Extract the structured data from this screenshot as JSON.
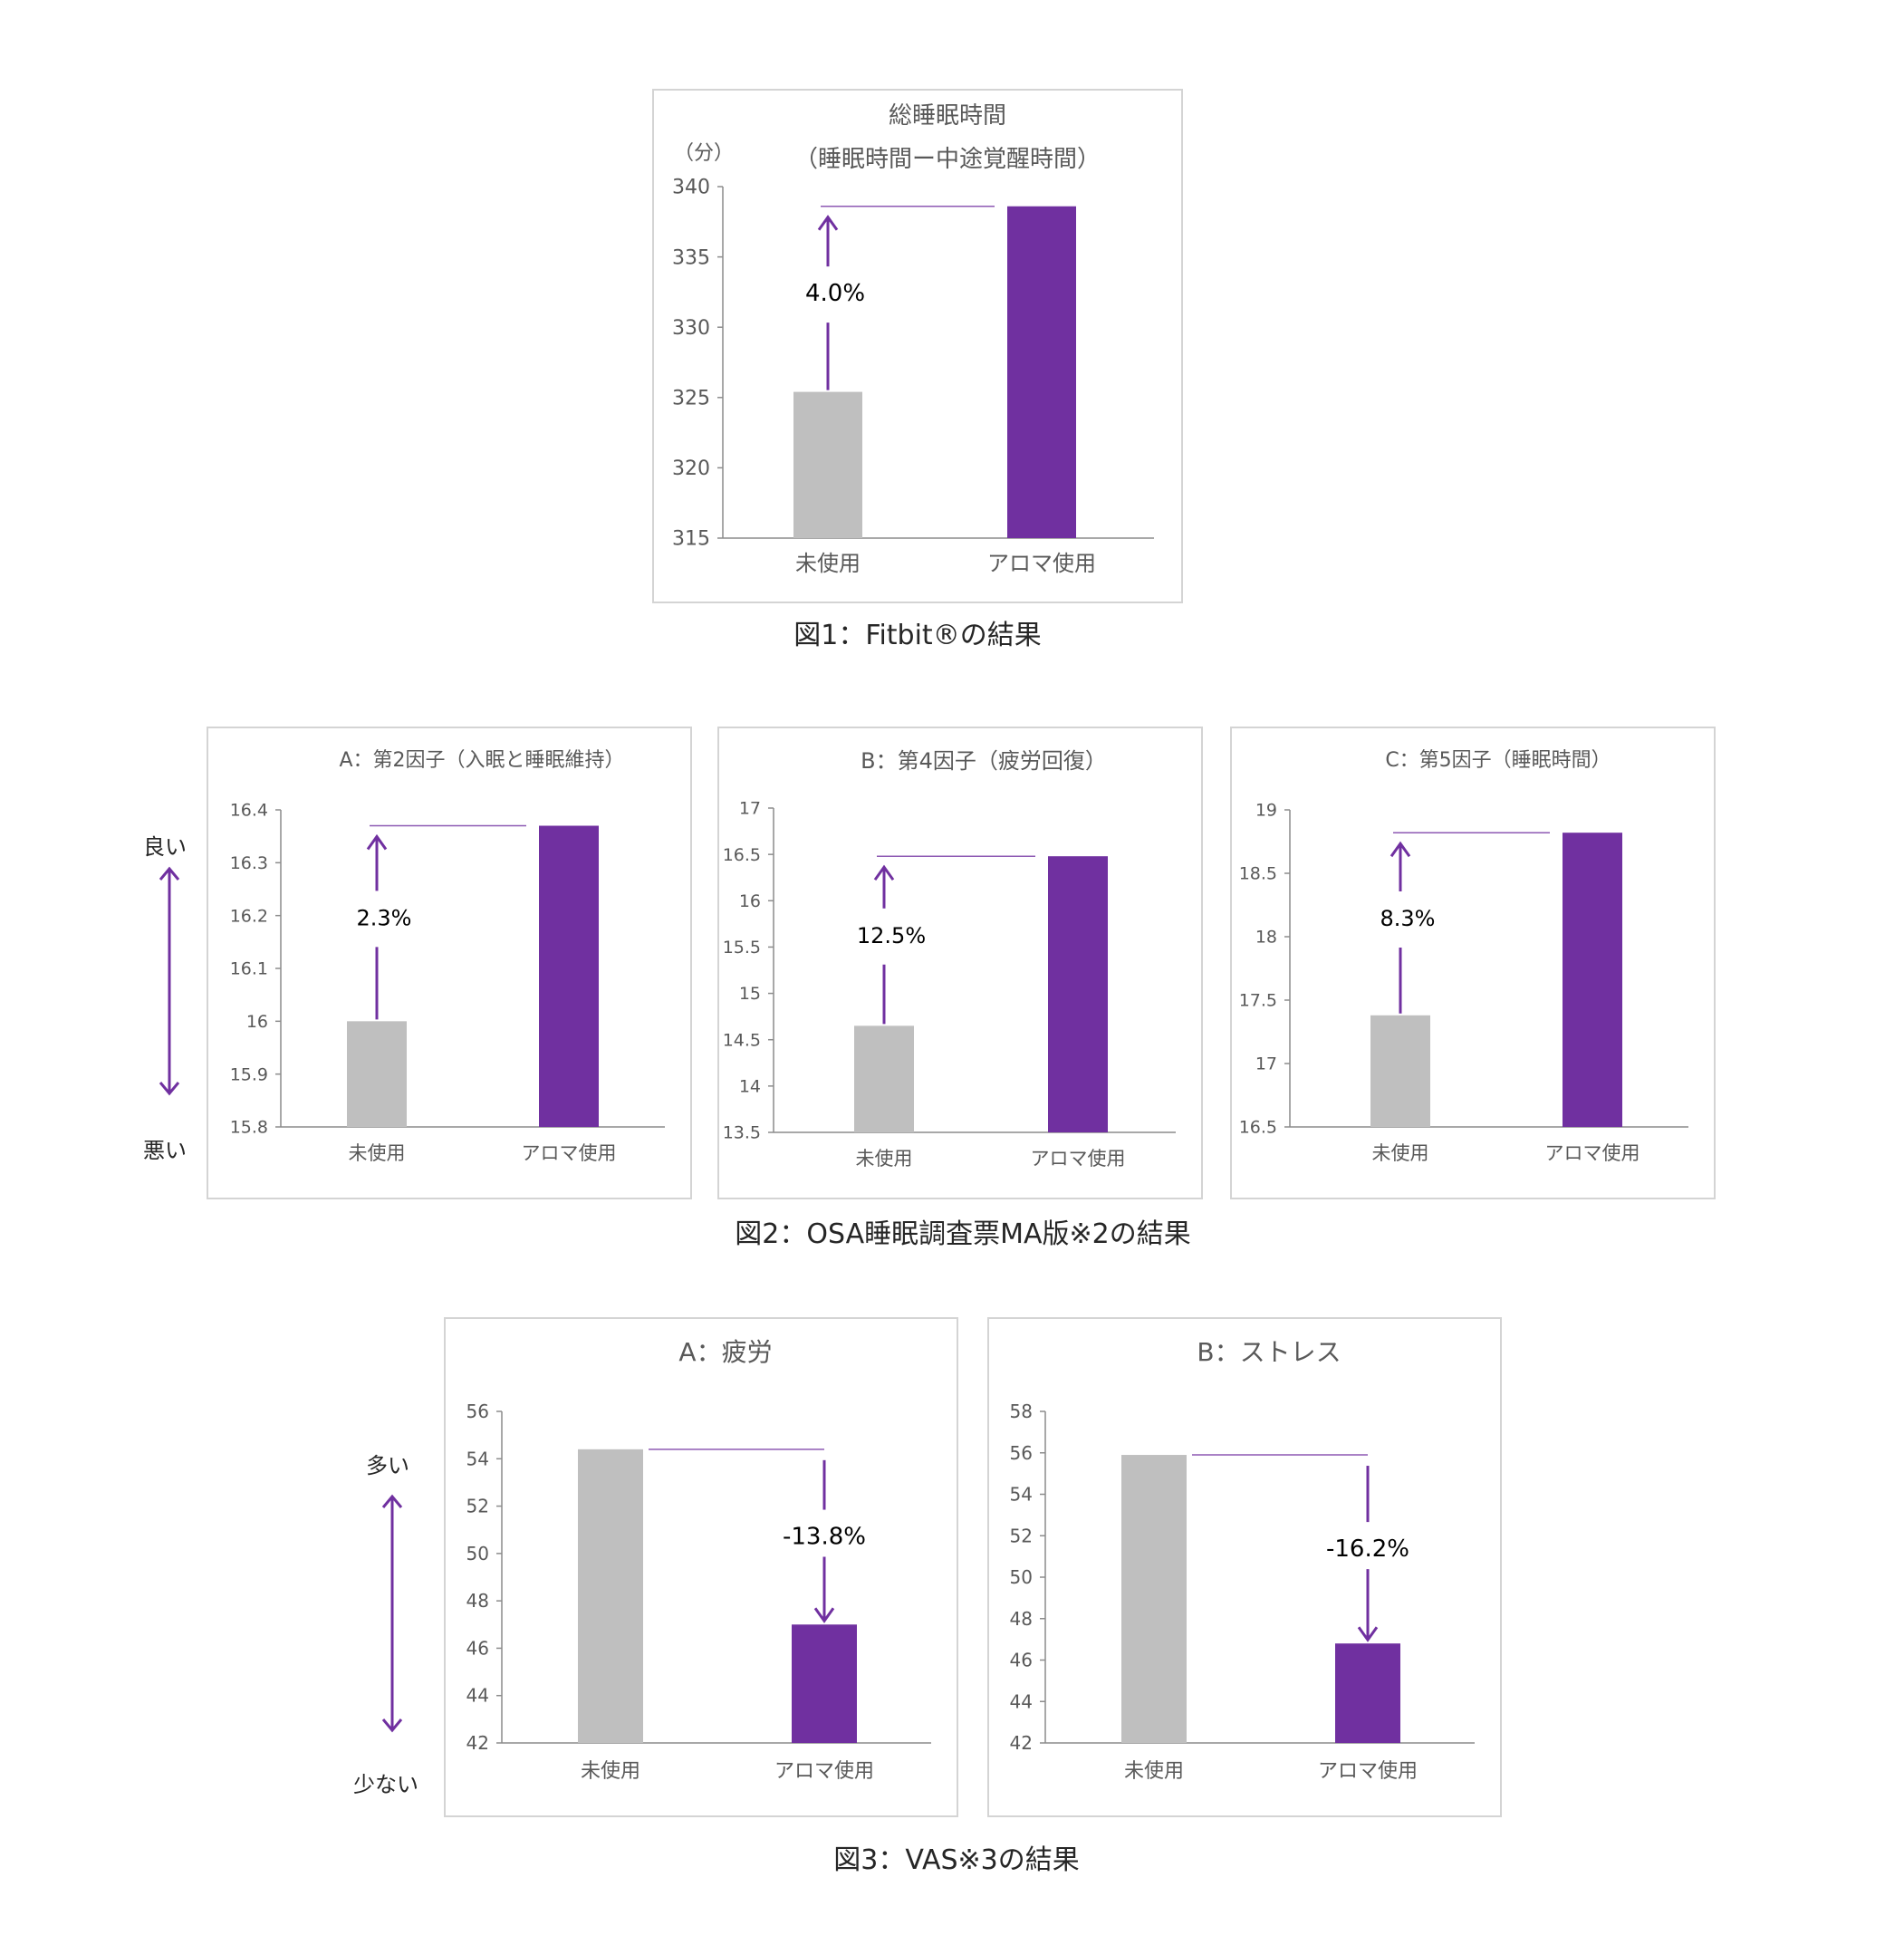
{
  "colors": {
    "before": "#bfbfbf",
    "after": "#7030a0",
    "axis": "#8c8c8c",
    "text": "#595959",
    "label": "#000000"
  },
  "figure1": {
    "caption": "図1：Fitbit®の結果"
  },
  "figure2": {
    "caption": "図2：OSA睡眠調査票MA版※2の結果",
    "side_top": "良い",
    "side_bottom": "悪い"
  },
  "figure3": {
    "caption": "図3：VAS※3の結果",
    "side_top": "多い",
    "side_bottom": "少ない"
  },
  "chart_data": [
    {
      "id": "fig1",
      "type": "bar",
      "title": "総睡眠時間",
      "subtitle": "（睡眠時間ー中途覚醒時間）",
      "ylabel": "（分）",
      "categories": [
        "未使用",
        "アロマ使用"
      ],
      "values": [
        325.4,
        338.6
      ],
      "ylim": [
        315,
        340
      ],
      "yticks": [
        "315",
        "320",
        "325",
        "330",
        "335",
        "340"
      ],
      "change_label": "4.0%",
      "direction": "up"
    },
    {
      "id": "fig2a",
      "type": "bar",
      "title": "A：第2因子（入眠と睡眠維持）",
      "categories": [
        "未使用",
        "アロマ使用"
      ],
      "values": [
        16.0,
        16.37
      ],
      "ylim": [
        15.8,
        16.4
      ],
      "yticks": [
        "15.8",
        "15.9",
        "16",
        "16.1",
        "16.2",
        "16.3",
        "16.4"
      ],
      "change_label": "2.3%",
      "direction": "up"
    },
    {
      "id": "fig2b",
      "type": "bar",
      "title": "B：第4因子（疲労回復）",
      "categories": [
        "未使用",
        "アロマ使用"
      ],
      "values": [
        14.65,
        16.48
      ],
      "ylim": [
        13.5,
        17
      ],
      "yticks": [
        "13.5",
        "14",
        "14.5",
        "15",
        "15.5",
        "16",
        "16.5",
        "17"
      ],
      "change_label": "12.5%",
      "direction": "up"
    },
    {
      "id": "fig2c",
      "type": "bar",
      "title": "C：第5因子（睡眠時間）",
      "categories": [
        "未使用",
        "アロマ使用"
      ],
      "values": [
        17.38,
        18.82
      ],
      "ylim": [
        16.5,
        19
      ],
      "yticks": [
        "16.5",
        "17",
        "17.5",
        "18",
        "18.5",
        "19"
      ],
      "change_label": "8.3%",
      "direction": "up"
    },
    {
      "id": "fig3a",
      "type": "bar",
      "title": "A：疲労",
      "categories": [
        "未使用",
        "アロマ使用"
      ],
      "values": [
        54.4,
        47.0
      ],
      "ylim": [
        42,
        56
      ],
      "yticks": [
        "42",
        "44",
        "46",
        "48",
        "50",
        "52",
        "54",
        "56"
      ],
      "change_label": "-13.8%",
      "direction": "down"
    },
    {
      "id": "fig3b",
      "type": "bar",
      "title": "B：ストレス",
      "categories": [
        "未使用",
        "アロマ使用"
      ],
      "values": [
        55.9,
        46.8
      ],
      "ylim": [
        42,
        58
      ],
      "yticks": [
        "42",
        "44",
        "46",
        "48",
        "50",
        "52",
        "54",
        "56",
        "58"
      ],
      "change_label": "-16.2%",
      "direction": "down"
    }
  ]
}
